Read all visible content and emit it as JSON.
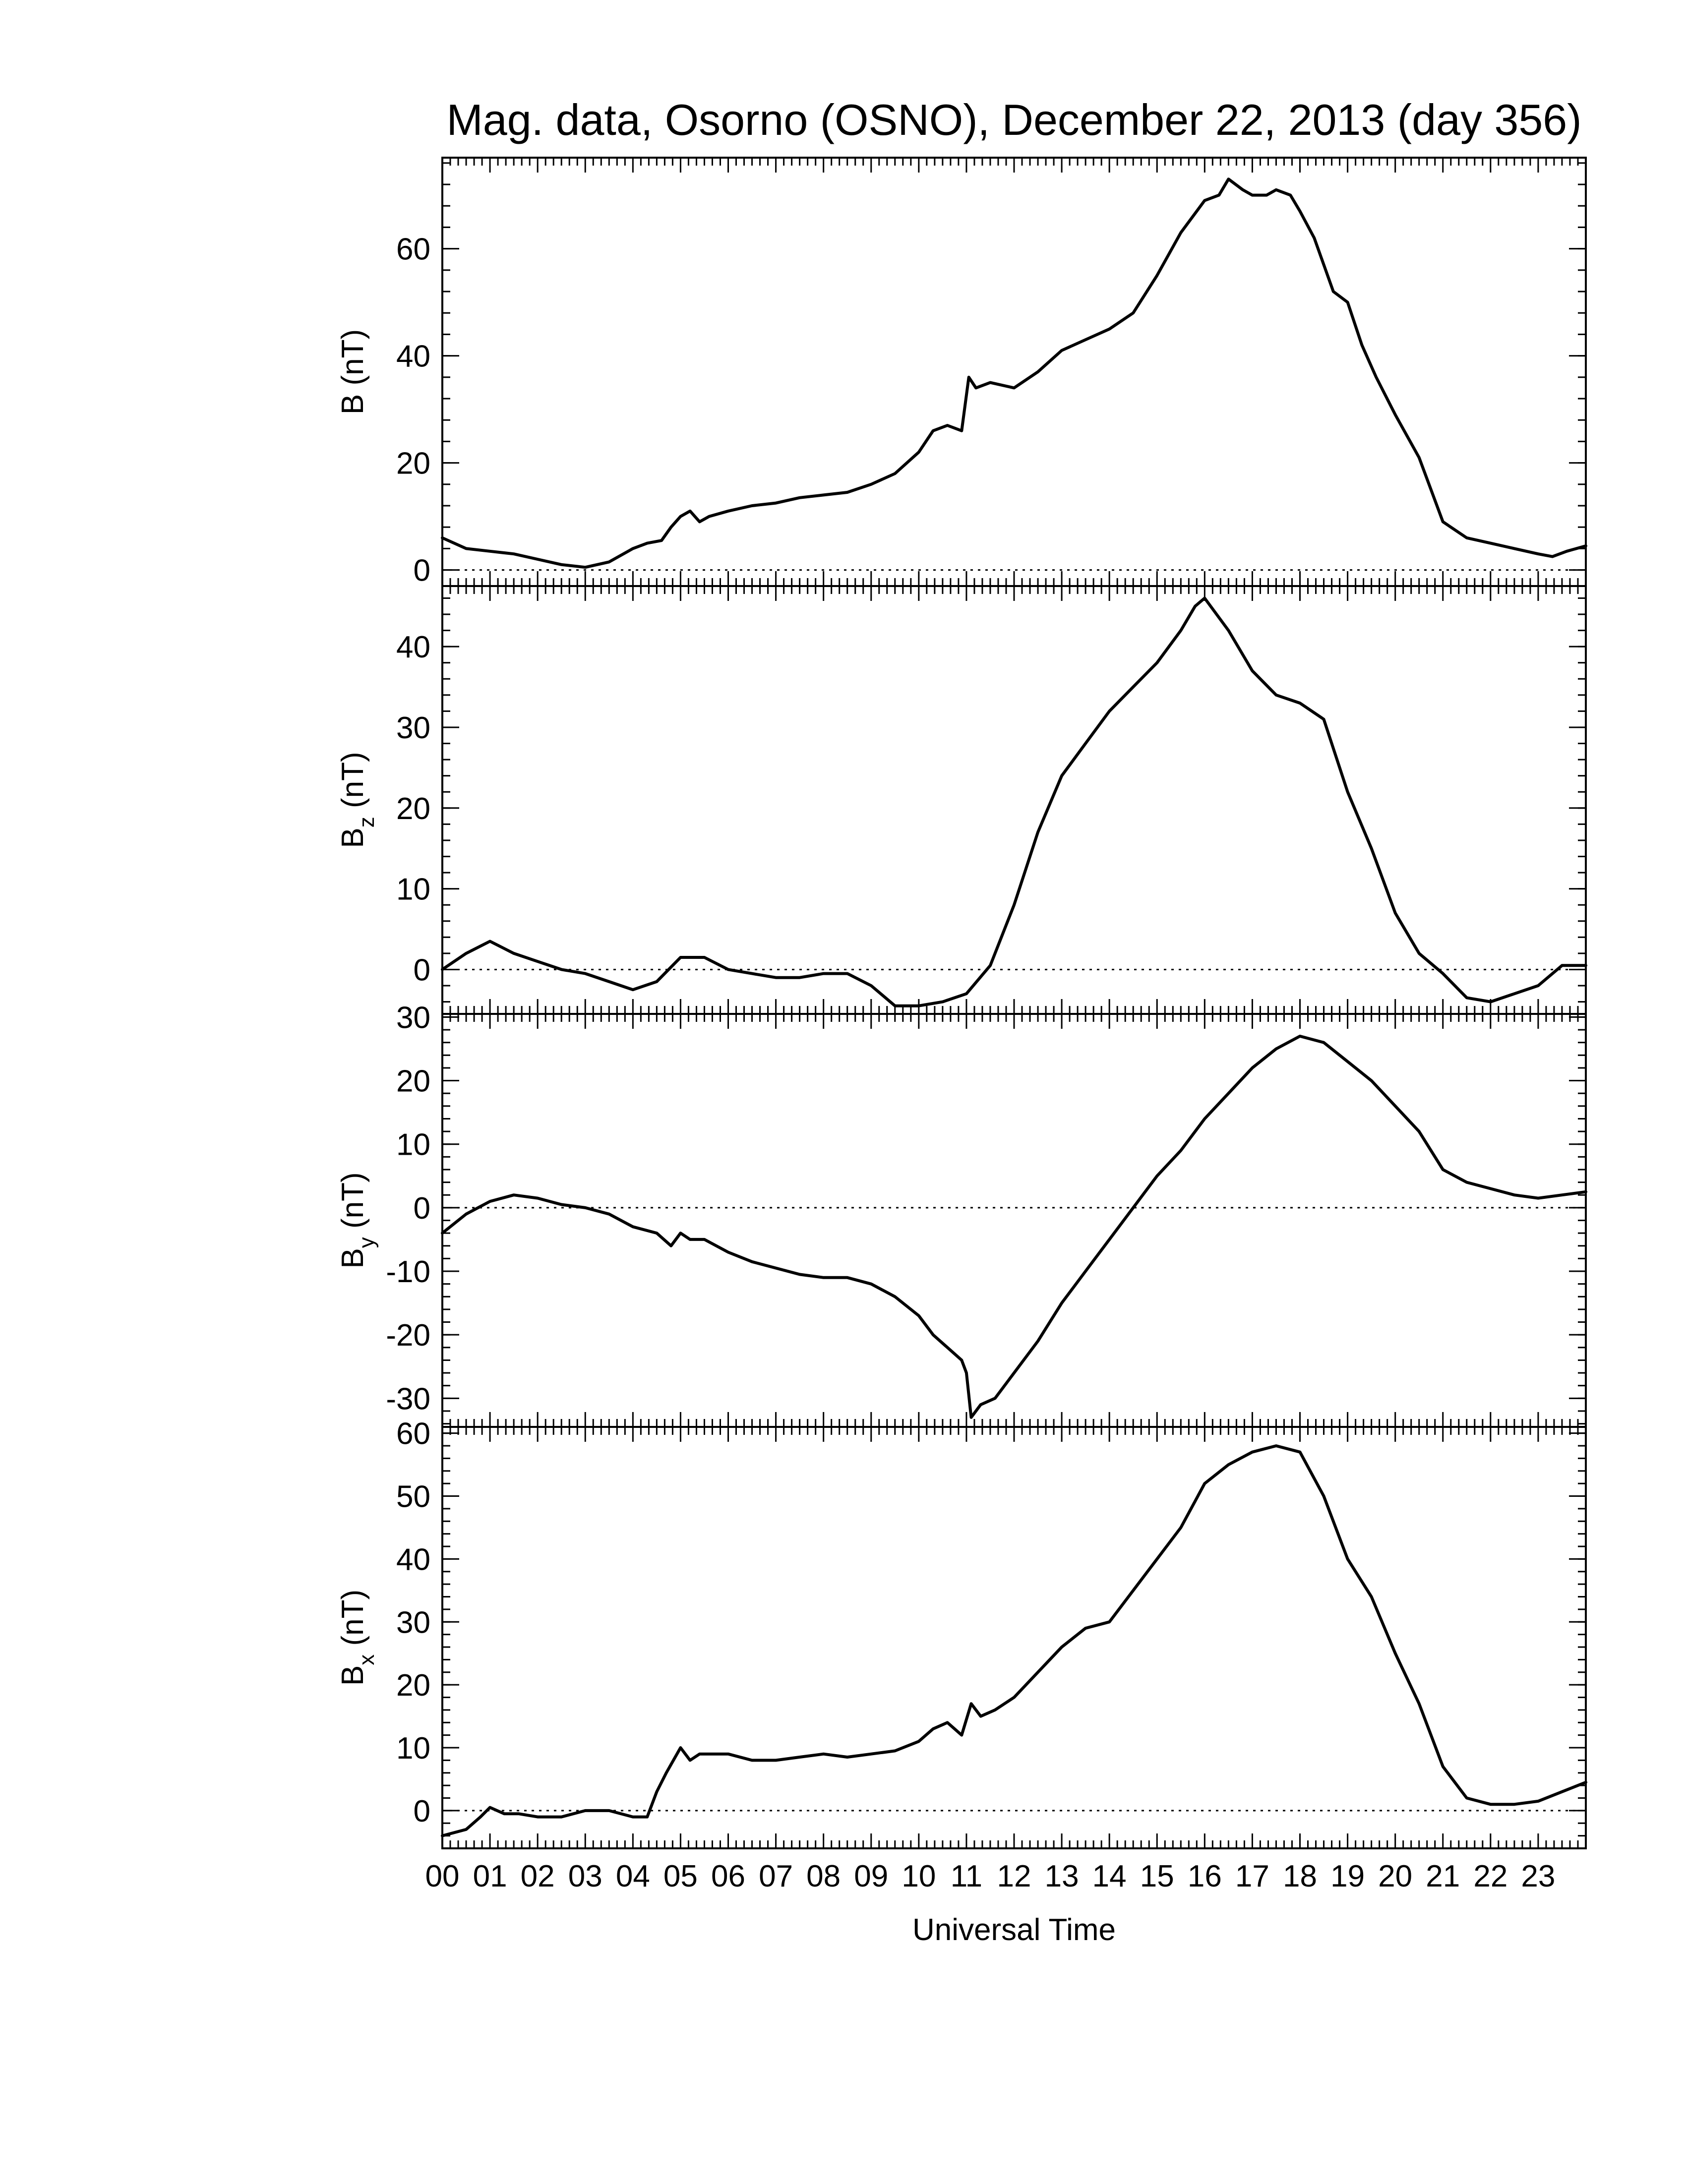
{
  "chart_data": {
    "type": "line",
    "title": "Mag. data, Osorno (OSNO), December 22, 2013 (day 356)",
    "xlabel": "Universal Time",
    "x_unit": "hours UT",
    "xlim": [
      0,
      24
    ],
    "x_tick_labels": [
      "00",
      "01",
      "02",
      "03",
      "04",
      "05",
      "06",
      "07",
      "08",
      "09",
      "10",
      "11",
      "12",
      "13",
      "14",
      "15",
      "16",
      "17",
      "18",
      "19",
      "20",
      "21",
      "22",
      "23"
    ],
    "grid": false,
    "zero_reference_line": "dotted",
    "panels": [
      {
        "id": "B",
        "ylabel_main": "B",
        "ylabel_sub": "",
        "ylabel_unit": "(nT)",
        "ylim": [
          -3,
          77
        ],
        "yticks": [
          0,
          20,
          40,
          60
        ],
        "series": [
          {
            "x": [
              0,
              0.5,
              1,
              1.5,
              2,
              2.5,
              3,
              3.5,
              4,
              4.3,
              4.6,
              4.8,
              5,
              5.2,
              5.4,
              5.6,
              6,
              6.5,
              7,
              7.5,
              8,
              8.5,
              9,
              9.5,
              10,
              10.3,
              10.6,
              10.9,
              11.05,
              11.2,
              11.5,
              12,
              12.5,
              13,
              13.5,
              14,
              14.5,
              15,
              15.5,
              16,
              16.3,
              16.5,
              16.8,
              17,
              17.3,
              17.5,
              17.8,
              18,
              18.3,
              18.7,
              19,
              19.3,
              19.6,
              20,
              20.5,
              21,
              21.5,
              22,
              22.5,
              23,
              23.3,
              23.6,
              24
            ],
            "y": [
              6,
              4,
              3.5,
              3,
              2,
              1,
              0.5,
              1.5,
              4,
              5,
              5.5,
              8,
              10,
              11,
              9,
              10,
              11,
              12,
              12.5,
              13.5,
              14,
              14.5,
              16,
              18,
              22,
              26,
              27,
              26,
              36,
              34,
              35,
              34,
              37,
              41,
              43,
              45,
              48,
              55,
              63,
              69,
              70,
              73,
              71,
              70,
              70,
              71,
              70,
              67,
              62,
              52,
              50,
              42,
              36,
              29,
              21,
              9,
              6,
              5,
              4,
              3,
              2.5,
              3.5,
              4.5
            ]
          }
        ]
      },
      {
        "id": "Bz",
        "ylabel_main": "B",
        "ylabel_sub": "z",
        "ylabel_unit": "(nT)",
        "ylim": [
          -5.5,
          47.5
        ],
        "yticks": [
          0,
          10,
          20,
          30,
          40
        ],
        "series": [
          {
            "x": [
              0,
              0.5,
              1,
              1.5,
              2,
              2.5,
              3,
              3.5,
              4,
              4.5,
              5,
              5.5,
              6,
              6.5,
              7,
              7.5,
              8,
              8.5,
              9,
              9.5,
              10,
              10.5,
              11,
              11.5,
              12,
              12.5,
              13,
              13.5,
              14,
              14.5,
              15,
              15.5,
              15.8,
              16,
              16.5,
              17,
              17.5,
              18,
              18.5,
              19,
              19.5,
              20,
              20.5,
              21,
              21.5,
              22,
              22.5,
              23,
              23.5,
              24
            ],
            "y": [
              0,
              2,
              3.5,
              2,
              1,
              0,
              -0.5,
              -1.5,
              -2.5,
              -1.5,
              1.5,
              1.5,
              0,
              -0.5,
              -1,
              -1,
              -0.5,
              -0.5,
              -2,
              -4.5,
              -4.5,
              -4,
              -3,
              0.5,
              8,
              17,
              24,
              28,
              32,
              35,
              38,
              42,
              45,
              46,
              42,
              37,
              34,
              33,
              31,
              22,
              15,
              7,
              2,
              -0.5,
              -3.5,
              -4,
              -3,
              -2,
              0.5,
              0.5
            ]
          }
        ]
      },
      {
        "id": "By",
        "ylabel_main": "B",
        "ylabel_sub": "y",
        "ylabel_unit": "(nT)",
        "ylim": [
          -34.5,
          30.5
        ],
        "yticks": [
          -30,
          -20,
          -10,
          0,
          10,
          20,
          30
        ],
        "series": [
          {
            "x": [
              0,
              0.5,
              1,
              1.5,
              2,
              2.5,
              3,
              3.5,
              4,
              4.5,
              4.8,
              5,
              5.2,
              5.5,
              6,
              6.5,
              7,
              7.5,
              8,
              8.5,
              9,
              9.5,
              10,
              10.3,
              10.6,
              10.9,
              11,
              11.1,
              11.3,
              11.6,
              12,
              12.5,
              13,
              13.5,
              14,
              14.5,
              15,
              15.5,
              16,
              16.5,
              17,
              17.5,
              18,
              18.5,
              19,
              19.5,
              20,
              20.5,
              21,
              21.5,
              22,
              22.5,
              23,
              23.5,
              24
            ],
            "y": [
              -4,
              -1,
              1,
              2,
              1.5,
              0.5,
              0,
              -1,
              -3,
              -4,
              -6,
              -4,
              -5,
              -5,
              -7,
              -8.5,
              -9.5,
              -10.5,
              -11,
              -11,
              -12,
              -14,
              -17,
              -20,
              -22,
              -24,
              -26,
              -33,
              -31,
              -30,
              -26,
              -21,
              -15,
              -10,
              -5,
              0,
              5,
              9,
              14,
              18,
              22,
              25,
              27,
              26,
              23,
              20,
              16,
              12,
              6,
              4,
              3,
              2,
              1.5,
              2,
              2.5
            ]
          }
        ]
      },
      {
        "id": "Bx",
        "ylabel_main": "B",
        "ylabel_sub": "x",
        "ylabel_unit": "(nT)",
        "ylim": [
          -6,
          61
        ],
        "yticks": [
          0,
          10,
          20,
          30,
          40,
          50,
          60
        ],
        "series": [
          {
            "x": [
              0,
              0.5,
              0.8,
              1,
              1.3,
              1.6,
              2,
              2.5,
              3,
              3.5,
              4,
              4.3,
              4.5,
              4.7,
              5,
              5.2,
              5.4,
              5.6,
              6,
              6.5,
              7,
              7.5,
              8,
              8.5,
              9,
              9.5,
              10,
              10.3,
              10.6,
              10.9,
              11.1,
              11.3,
              11.6,
              12,
              12.5,
              13,
              13.5,
              14,
              14.5,
              15,
              15.5,
              16,
              16.5,
              17,
              17.5,
              18,
              18.5,
              19,
              19.5,
              20,
              20.5,
              21,
              21.5,
              22,
              22.5,
              23,
              23.5,
              24
            ],
            "y": [
              -4,
              -3,
              -1,
              0.5,
              -0.5,
              -0.5,
              -1,
              -1,
              0,
              0,
              -1,
              -1,
              3,
              6,
              10,
              8,
              9,
              9,
              9,
              8,
              8,
              8.5,
              9,
              8.5,
              9,
              9.5,
              11,
              13,
              14,
              12,
              17,
              15,
              16,
              18,
              22,
              26,
              29,
              30,
              35,
              40,
              45,
              52,
              55,
              57,
              58,
              57,
              50,
              40,
              34,
              25,
              17,
              7,
              2,
              1,
              1,
              1.5,
              3,
              4.5
            ]
          }
        ]
      }
    ]
  }
}
